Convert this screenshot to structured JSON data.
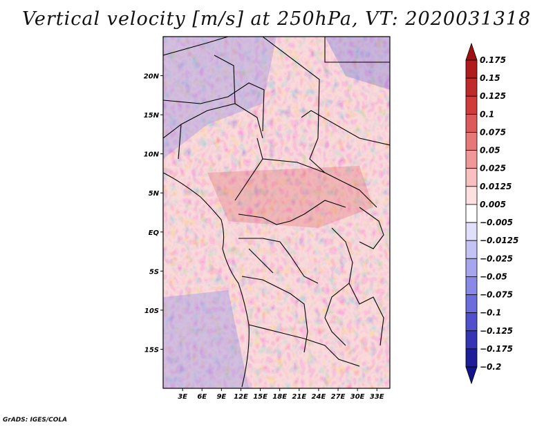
{
  "chart_data": {
    "type": "heatmap",
    "title": "Vertical velocity [m/s] at 250hPa, VT: 2020031318",
    "variable": "Vertical velocity",
    "units": "m/s",
    "level": "250hPa",
    "valid_time": "2020031318",
    "x_axis": {
      "range": [
        0,
        35
      ],
      "ticks": [
        3,
        6,
        9,
        12,
        15,
        18,
        21,
        24,
        27,
        30,
        33
      ],
      "tick_labels": [
        "3E",
        "6E",
        "9E",
        "12E",
        "15E",
        "18E",
        "21E",
        "24E",
        "27E",
        "30E",
        "33E"
      ]
    },
    "y_axis": {
      "range": [
        -20,
        25
      ],
      "ticks": [
        20,
        15,
        10,
        5,
        0,
        -5,
        -10,
        -15
      ],
      "tick_labels": [
        "20N",
        "15N",
        "10N",
        "5N",
        "EQ",
        "5S",
        "10S",
        "15S"
      ]
    },
    "colorbar": {
      "levels": [
        0.175,
        0.15,
        0.125,
        0.1,
        0.075,
        0.05,
        0.025,
        0.0125,
        0.005,
        -0.005,
        -0.0125,
        -0.025,
        -0.05,
        -0.075,
        -0.1,
        -0.125,
        -0.175,
        -0.2
      ],
      "labels": [
        "0.175",
        "0.15",
        "0.125",
        "0.1",
        "0.075",
        "0.05",
        "0.025",
        "0.0125",
        "0.005",
        "−0.005",
        "−0.0125",
        "−0.025",
        "−0.05",
        "−0.075",
        "−0.1",
        "−0.125",
        "−0.175",
        "−0.2"
      ],
      "colors": [
        "#a01010",
        "#b01c1c",
        "#c02a2a",
        "#d03c3c",
        "#dc5a5a",
        "#e67878",
        "#f09898",
        "#f8c0c0",
        "#fde0e0",
        "#ffffff",
        "#e0e0fa",
        "#c4c4f4",
        "#a6a6ee",
        "#8888e6",
        "#6c6cdc",
        "#5050cc",
        "#3434b4",
        "#1e1e9a",
        "#14148a"
      ]
    }
  },
  "credit": "GrADS: IGES/COLA"
}
